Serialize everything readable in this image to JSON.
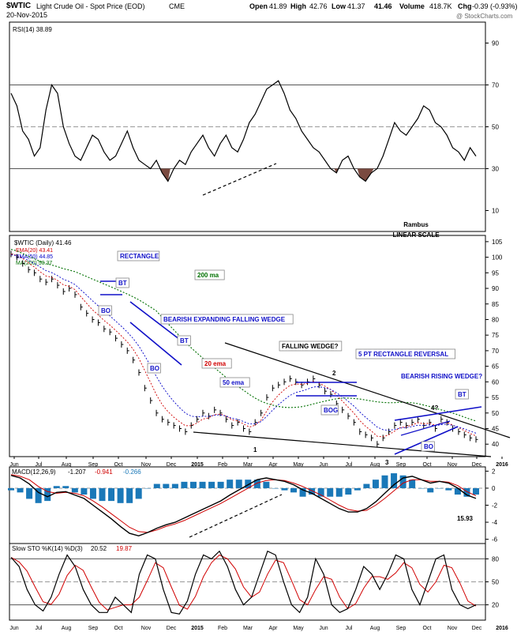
{
  "header": {
    "symbol": "$WTIC",
    "name": "Light Crude Oil - Spot Price (EOD)",
    "exchange": "CME",
    "date": "20-Nov-2015",
    "open_label": "Open",
    "open": "41.89",
    "high_label": "High",
    "high": "42.76",
    "low_label": "Low",
    "low": "41.37",
    "close": "41.46",
    "volume_label": "Volume",
    "volume": "418.7K",
    "change_label": "Chg",
    "change": "-0.39 (-0.93%)",
    "watermark": "@ StockCharts.com"
  },
  "chart_data": [
    {
      "type": "line",
      "panel": "rsi",
      "legend": "RSI(14) 38.89",
      "ylim": [
        0,
        100
      ],
      "yticks": [
        10,
        30,
        50,
        70,
        90
      ],
      "reference_lines": [
        30,
        50,
        70
      ],
      "annotations": [
        "Rambus",
        "LINEAR SCALE"
      ],
      "series": [
        {
          "values": [
            66,
            60,
            48,
            44,
            36,
            40,
            58,
            70,
            66,
            50,
            42,
            36,
            34,
            40,
            46,
            44,
            38,
            34,
            36,
            42,
            48,
            40,
            34,
            32,
            30,
            34,
            28,
            24,
            30,
            34,
            32,
            38,
            42,
            46,
            40,
            36,
            42,
            46,
            40,
            38,
            44,
            52,
            56,
            62,
            68,
            70,
            72,
            66,
            58,
            54,
            48,
            44,
            40,
            38,
            34,
            30,
            28,
            34,
            36,
            30,
            26,
            24,
            28,
            30,
            36,
            44,
            52,
            48,
            46,
            50,
            54,
            60,
            58,
            52,
            50,
            46,
            40,
            38,
            34,
            40,
            36
          ]
        }
      ]
    },
    {
      "type": "line",
      "panel": "price",
      "title": "$WTIC (Daily) 41.46",
      "ylim": [
        36,
        107
      ],
      "yticks": [
        40,
        45,
        50,
        55,
        60,
        65,
        70,
        75,
        80,
        85,
        90,
        95,
        100,
        105
      ],
      "series": [
        {
          "name": "EMA(20) 43.41",
          "color": "#d00000"
        },
        {
          "name": "EMA(50) 44.85",
          "color": "#0000c8"
        },
        {
          "name": "MA(200) 50.37",
          "color": "#007000"
        },
        {
          "name": "$WTIC",
          "color": "#000000",
          "values": [
            101,
            100,
            98,
            96,
            95,
            93,
            92,
            93,
            91,
            89,
            90,
            88,
            84,
            82,
            80,
            79,
            77,
            76,
            74,
            72,
            70,
            67,
            63,
            58,
            54,
            50,
            48,
            47,
            46,
            45,
            44,
            46,
            48,
            50,
            49,
            51,
            50,
            48,
            46,
            47,
            45,
            44,
            47,
            50,
            55,
            58,
            59,
            60,
            61,
            60,
            59,
            60,
            61,
            59,
            57,
            56,
            53,
            51,
            49,
            47,
            44,
            43,
            42,
            40,
            42,
            44,
            46,
            47,
            46,
            47,
            48,
            46,
            47,
            45,
            48,
            47,
            45,
            44,
            43,
            42,
            41.5
          ]
        }
      ],
      "x_tick_labels": [
        "Jun",
        "Jul",
        "Aug",
        "Sep",
        "Oct",
        "Nov",
        "Dec",
        "2015",
        "Feb",
        "Mar",
        "Apr",
        "May",
        "Jun",
        "Jul",
        "Aug",
        "Sep",
        "Oct",
        "Nov",
        "Dec",
        "2016"
      ],
      "annotations": [
        "RECTANGLE",
        "BT",
        "BO",
        "BEARISH EXPANDING FALLING WEDGE",
        "BT",
        "BO",
        "20 ema",
        "50 ema",
        "200 ma",
        "FALLING WEDGE?",
        "5 PT RECTANGLE REVERSAL",
        "BOG",
        "BEARISH RISING WEDGE?",
        "4?",
        "BT",
        "BO",
        "1",
        "2",
        "3"
      ]
    },
    {
      "type": "line",
      "panel": "macd",
      "legend_prefix": "MACD(12,26,9)",
      "legend_values": [
        "-1.207",
        "-0.941",
        "-0.266"
      ],
      "ylim": [
        -6.5,
        2.5
      ],
      "yticks": [
        2,
        0,
        -2,
        -4,
        -6
      ],
      "annotations": [
        "15.93"
      ],
      "series": [
        {
          "name": "MACD",
          "color": "#000000",
          "values": [
            1.5,
            1.2,
            0.5,
            -0.5,
            -1.0,
            -0.5,
            -0.4,
            -0.8,
            -1.2,
            -2.0,
            -2.8,
            -3.6,
            -4.5,
            -5.3,
            -5.6,
            -5.2,
            -4.7,
            -4.3,
            -4.0,
            -3.5,
            -3.0,
            -2.5,
            -2.0,
            -1.5,
            -0.8,
            -0.2,
            0.4,
            1.0,
            1.2,
            1.0,
            0.8,
            0.4,
            -0.2,
            -0.6,
            -1.2,
            -1.8,
            -2.4,
            -2.8,
            -2.8,
            -2.4,
            -1.6,
            -0.6,
            0.4,
            1.2,
            1.4,
            1.0,
            0.6,
            0.8,
            0.6,
            0.0,
            -0.8,
            -1.2
          ]
        },
        {
          "name": "Signal",
          "color": "#d00000",
          "values": [
            1.6,
            1.4,
            1.0,
            0.2,
            -0.4,
            -0.6,
            -0.5,
            -0.6,
            -0.9,
            -1.5,
            -2.2,
            -3.0,
            -3.8,
            -4.6,
            -5.1,
            -5.2,
            -4.9,
            -4.5,
            -4.2,
            -3.8,
            -3.3,
            -2.8,
            -2.3,
            -1.8,
            -1.2,
            -0.6,
            0.0,
            0.6,
            0.9,
            1.0,
            0.9,
            0.6,
            0.2,
            -0.3,
            -0.8,
            -1.4,
            -2.0,
            -2.5,
            -2.7,
            -2.6,
            -2.0,
            -1.2,
            -0.3,
            0.6,
            1.0,
            1.0,
            0.8,
            0.8,
            0.7,
            0.3,
            -0.4,
            -0.9
          ]
        }
      ]
    },
    {
      "type": "line",
      "panel": "stochastic",
      "legend_prefix": "Slow STO %K(14) %D(3)",
      "legend_values": [
        "20.52",
        "19.87"
      ],
      "ylim": [
        0,
        100
      ],
      "yticks": [
        20,
        50,
        80
      ],
      "reference_lines": [
        20,
        50,
        80
      ],
      "series": [
        {
          "name": "%K",
          "color": "#000000",
          "values": [
            82,
            70,
            40,
            20,
            12,
            30,
            60,
            85,
            70,
            40,
            20,
            10,
            10,
            30,
            20,
            10,
            60,
            85,
            80,
            40,
            10,
            8,
            25,
            60,
            85,
            80,
            90,
            70,
            40,
            20,
            30,
            60,
            90,
            85,
            50,
            20,
            10,
            30,
            80,
            60,
            20,
            10,
            15,
            40,
            70,
            60,
            40,
            60,
            85,
            80,
            40,
            20,
            50,
            80,
            85,
            40,
            20,
            15,
            20
          ]
        }
      ]
    }
  ],
  "colors": {
    "price_up": "#000000",
    "annotation_blue": "#1010c8",
    "rsi_fill": "#7a4a40",
    "macd_hist": "#1a78b8",
    "ref_line": "#9a9a9a"
  }
}
